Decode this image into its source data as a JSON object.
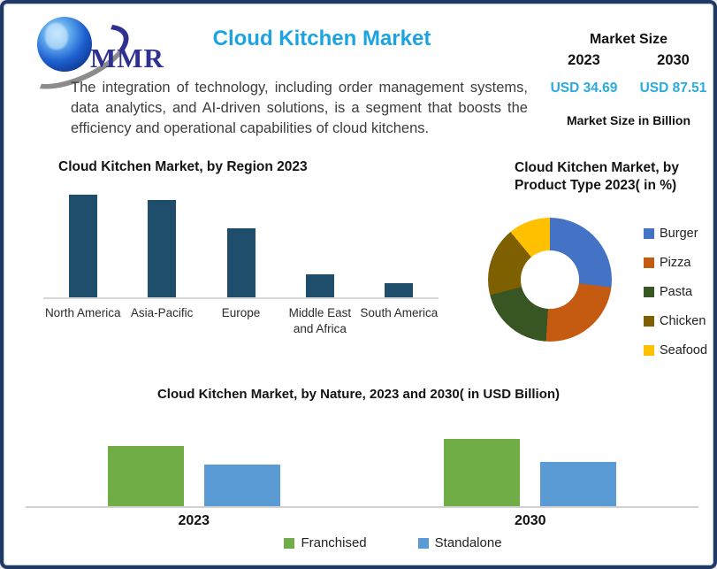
{
  "page": {
    "border_color": "#1F3864",
    "background": "#FFFFFF"
  },
  "header": {
    "logo_text": "MMR",
    "title": "Cloud Kitchen Market",
    "title_color": "#1BA3E2",
    "description": "The integration of technology, including order management systems, data analytics, and AI-driven solutions, is a segment that boosts the efficiency and operational capabilities of cloud kitchens."
  },
  "market_size": {
    "heading": "Market Size",
    "years": [
      "2023",
      "2030"
    ],
    "values": [
      "USD 34.69",
      "USD 87.51"
    ],
    "value_color": "#29ABE2",
    "footnote": "Market Size in Billion"
  },
  "chart_data": [
    {
      "id": "region",
      "type": "bar",
      "title": "Cloud Kitchen Market, by Region 2023",
      "categories": [
        "North America",
        "Asia-Pacific",
        "Europe",
        "Middle East and Africa",
        "South America"
      ],
      "values": [
        116,
        110,
        78,
        26,
        16
      ],
      "value_note": "axis unlabeled; values are relative bar heights (North America highest, South America lowest)",
      "bar_color": "#1F4E6D",
      "grid": false,
      "xlabel": "",
      "ylabel": ""
    },
    {
      "id": "product-type",
      "type": "pie",
      "donut": true,
      "title": "Cloud Kitchen Market, by Product Type 2023( in %)",
      "labels": [
        "Burger",
        "Pizza",
        "Pasta",
        "Chicken",
        "Seafood"
      ],
      "values": [
        27,
        24,
        20,
        18,
        11
      ],
      "colors": [
        "#4472C4",
        "#C55A11",
        "#375623",
        "#7F6000",
        "#FFC000"
      ],
      "legend_position": "right",
      "start_angle_deg": 0
    },
    {
      "id": "nature",
      "type": "bar",
      "title": "Cloud Kitchen Market, by Nature, 2023 and 2030( in USD Billion)",
      "categories": [
        "2023",
        "2030"
      ],
      "series": [
        {
          "name": "Franchised",
          "color": "#70AD47",
          "values": [
            68,
            76
          ]
        },
        {
          "name": "Standalone",
          "color": "#5B9BD5",
          "values": [
            47,
            50
          ]
        }
      ],
      "value_note": "axis unlabeled; values are relative bar heights",
      "legend_position": "bottom",
      "grid": false
    }
  ]
}
